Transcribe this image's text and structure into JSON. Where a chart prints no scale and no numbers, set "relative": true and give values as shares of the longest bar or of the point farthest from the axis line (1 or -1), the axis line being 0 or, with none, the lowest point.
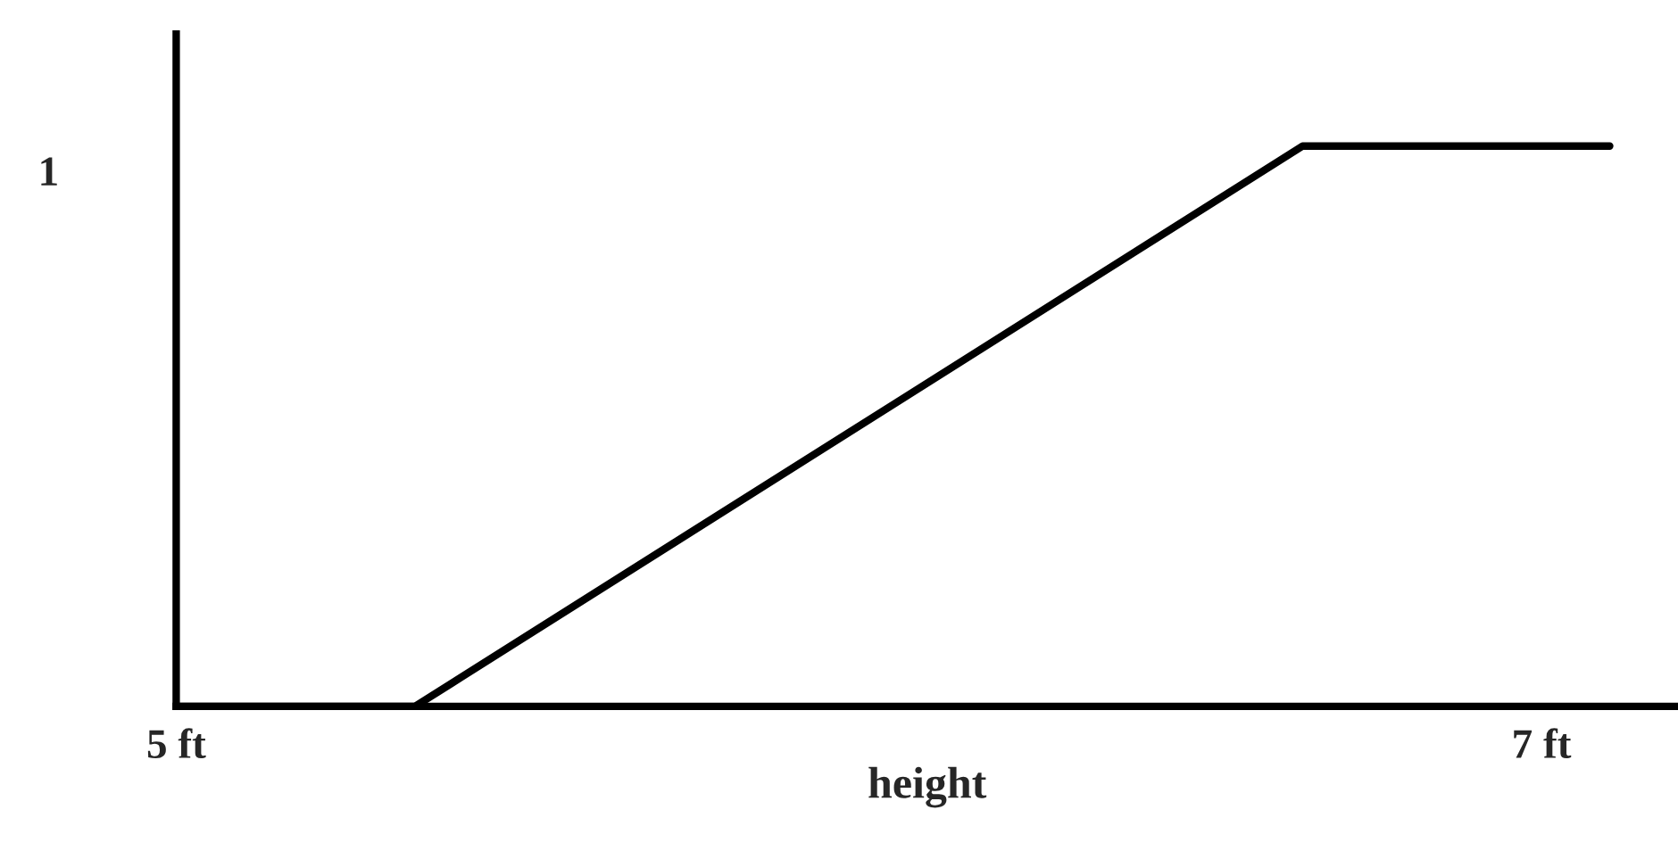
{
  "chart_data": {
    "type": "line",
    "relative": true,
    "xlabel": "height",
    "x": [
      5,
      5.35,
      6.65,
      7.1
    ],
    "values": [
      0,
      0,
      1,
      1
    ],
    "color": "#000000",
    "xlim": [
      5,
      7.2
    ],
    "xticks": [
      {
        "value": 5,
        "label": "5 ft"
      },
      {
        "value": 7,
        "label": "7 ft"
      }
    ],
    "annotations": [
      "1"
    ],
    "grid": false,
    "legend": false,
    "marker": "none",
    "line_style": "solid"
  }
}
